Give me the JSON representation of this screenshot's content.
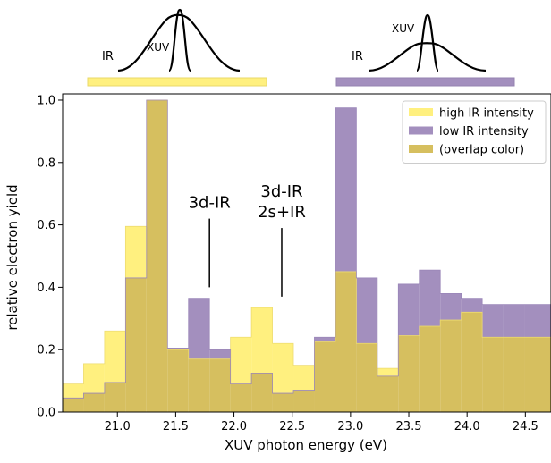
{
  "chart_data": {
    "type": "bar",
    "xlabel": "XUV photon energy (eV)",
    "ylabel": "relative electron yield",
    "xlim": [
      20.53,
      24.72
    ],
    "ylim": [
      0,
      1.02
    ],
    "x_ticks": [
      21.0,
      21.5,
      22.0,
      22.5,
      23.0,
      23.5,
      24.0,
      24.5
    ],
    "y_ticks": [
      0.0,
      0.2,
      0.4,
      0.6,
      0.8,
      1.0
    ],
    "bin_edges": [
      20.53,
      20.71,
      20.89,
      21.07,
      21.25,
      21.43,
      21.61,
      21.79,
      21.97,
      22.15,
      22.33,
      22.51,
      22.69,
      22.87,
      23.05,
      23.23,
      23.41,
      23.59,
      23.77,
      23.95,
      24.13,
      24.31,
      24.49,
      24.72
    ],
    "series": [
      {
        "name": "high IR intensity",
        "color": "#fff07f",
        "values": [
          0.09,
          0.155,
          0.26,
          0.595,
          1.0,
          0.2,
          0.17,
          0.17,
          0.24,
          0.335,
          0.22,
          0.15,
          0.225,
          0.45,
          0.22,
          0.14,
          0.245,
          0.275,
          0.295,
          0.32,
          0.24,
          0.24,
          0.24
        ]
      },
      {
        "name": "low IR intensity",
        "color": "#a38fbe",
        "values": [
          0.045,
          0.06,
          0.095,
          0.43,
          1.0,
          0.205,
          0.365,
          0.2,
          0.09,
          0.125,
          0.06,
          0.07,
          0.24,
          0.975,
          0.43,
          0.115,
          0.41,
          0.455,
          0.38,
          0.365,
          0.345,
          0.345,
          0.345
        ]
      }
    ],
    "legend": {
      "position": "top-right",
      "entries": [
        {
          "label": "high IR intensity",
          "color": "#fff07f"
        },
        {
          "label": "low IR intensity",
          "color": "#a38fbe"
        },
        {
          "label": "(overlap color)",
          "color": "#d6bf5f"
        }
      ]
    },
    "annotations": [
      {
        "lines": [
          "3d-IR"
        ],
        "x": 21.79,
        "line_from_y": 0.62,
        "line_to_y": 0.4
      },
      {
        "lines": [
          "3d-IR",
          "2s+IR"
        ],
        "x": 22.41,
        "line_from_y": 0.59,
        "line_to_y": 0.37
      }
    ],
    "pulse_insets": [
      {
        "labels": [
          "IR",
          "XUV"
        ],
        "bar_color": "#fff07f"
      },
      {
        "labels": [
          "IR",
          "XUV"
        ],
        "bar_color": "#a38fbe"
      }
    ]
  }
}
